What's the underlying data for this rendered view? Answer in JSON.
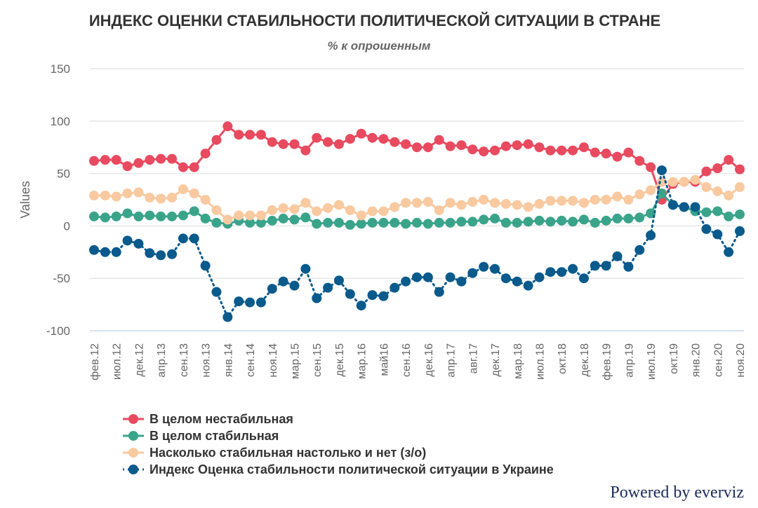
{
  "chart_data": {
    "type": "line",
    "title": "ИНДЕКС ОЦЕНКИ СТАБИЛЬНОСТИ ПОЛИТИЧЕСКОЙ СИТУАЦИИ В СТРАНЕ",
    "subtitle": "% к опрошенным",
    "y_label": "Values",
    "credit": "Powered by everviz",
    "categories": [
      "фев.12",
      null,
      "июл.12",
      null,
      "дек.12",
      null,
      "апр.13",
      null,
      "сен.13",
      null,
      "ноя.13",
      null,
      "янв.14",
      null,
      "сен.14",
      null,
      "ноя.14",
      null,
      "мар.15",
      null,
      "сен.15",
      null,
      "дек.15",
      null,
      "мар.16",
      null,
      "май16",
      null,
      "сен.16",
      null,
      "дек.16",
      null,
      "апр.17",
      null,
      "авг.17",
      null,
      "дек.17",
      null,
      "мар.18",
      null,
      "июл.18",
      null,
      "окт.18",
      null,
      "дек.18",
      null,
      "фев.19",
      null,
      "апр.19",
      null,
      "июл.19",
      null,
      "окт.19",
      null,
      "янв.20",
      null,
      "сен.20",
      null,
      "ноя.20"
    ],
    "ylim": [
      -100,
      150
    ],
    "yticks": [
      -100,
      -50,
      0,
      50,
      100,
      150
    ],
    "grid": true,
    "series": [
      {
        "name": "В целом нестабильная",
        "color": "#e84a5f",
        "line_style": "solid",
        "values": [
          62,
          63,
          63,
          57,
          60,
          63,
          64,
          64,
          56,
          56,
          69,
          82,
          95,
          87,
          87,
          87,
          80,
          78,
          78,
          72,
          84,
          80,
          78,
          83,
          88,
          84,
          83,
          80,
          78,
          75,
          75,
          82,
          76,
          77,
          73,
          71,
          72,
          76,
          77,
          78,
          75,
          72,
          72,
          72,
          75,
          70,
          69,
          66,
          70,
          62,
          56,
          25,
          40,
          42,
          42,
          52,
          55,
          63,
          54
        ]
      },
      {
        "name": "В целом стабильная",
        "color": "#3aa48a",
        "line_style": "solid",
        "values": [
          9,
          8,
          9,
          12,
          9,
          10,
          9,
          9,
          10,
          14,
          7,
          3,
          2,
          5,
          3,
          3,
          5,
          7,
          6,
          8,
          2,
          3,
          3,
          1,
          2,
          3,
          3,
          3,
          2,
          3,
          2,
          3,
          3,
          4,
          4,
          6,
          7,
          3,
          3,
          4,
          5,
          4,
          5,
          4,
          6,
          3,
          5,
          7,
          7,
          8,
          12,
          31,
          20,
          18,
          14,
          13,
          14,
          9,
          11
        ]
      },
      {
        "name": "Насколько стабильная настолько и нет (з/о)",
        "color": "#f9c9a0",
        "line_style": "solid",
        "values": [
          29,
          29,
          28,
          31,
          32,
          27,
          26,
          27,
          35,
          31,
          25,
          15,
          6,
          10,
          10,
          10,
          15,
          17,
          16,
          22,
          14,
          17,
          20,
          15,
          10,
          14,
          14,
          18,
          22,
          22,
          23,
          15,
          22,
          20,
          23,
          25,
          22,
          21,
          20,
          18,
          21,
          24,
          24,
          24,
          22,
          25,
          25,
          28,
          25,
          30,
          34,
          42,
          42,
          42,
          44,
          37,
          33,
          29,
          37
        ]
      },
      {
        "name": "Индекс Оценка стабильности политической ситуации в Украине",
        "color": "#0a5a8c",
        "line_style": "dotted",
        "values": [
          -23,
          -25,
          -25,
          -14,
          -17,
          -26,
          -28,
          -27,
          -12,
          -12,
          -38,
          -63,
          -87,
          -72,
          -73,
          -73,
          -60,
          -53,
          -57,
          -41,
          -69,
          -59,
          -52,
          -65,
          -76,
          -66,
          -67,
          -59,
          -53,
          -49,
          -49,
          -63,
          -49,
          -53,
          -45,
          -39,
          -41,
          -50,
          -53,
          -57,
          -49,
          -44,
          -44,
          -41,
          -50,
          -38,
          -38,
          -29,
          -39,
          -23,
          -9,
          53,
          20,
          18,
          18,
          -3,
          -8,
          -25,
          -5
        ]
      }
    ]
  }
}
